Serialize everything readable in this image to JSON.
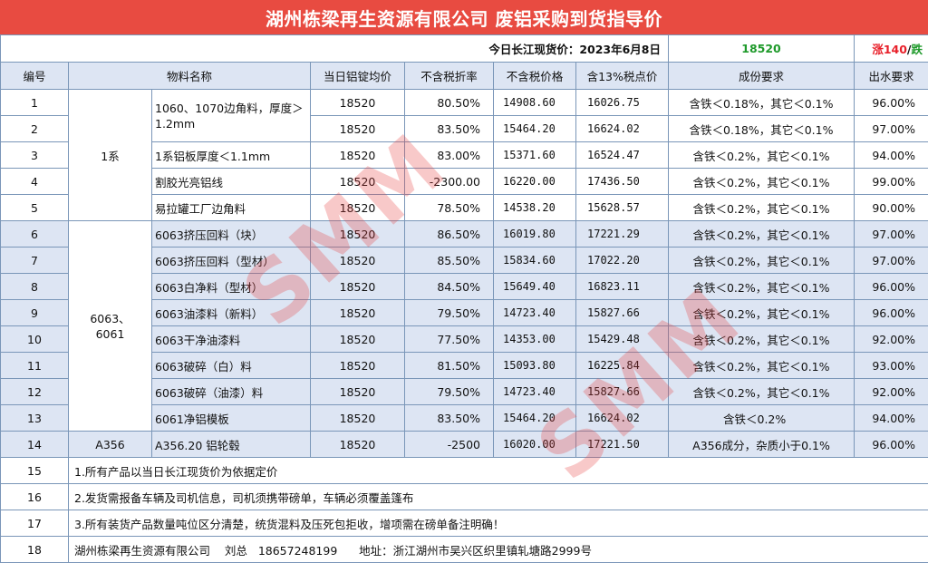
{
  "title": "湖州栋梁再生资源有限公司 废铝采购到货指导价",
  "price_bar": {
    "label": "今日长江现货价：2023年6月8日",
    "price": "18520",
    "change_up": "涨140",
    "change_sep": "/",
    "change_down": "跌"
  },
  "columns": [
    "编号",
    "物料名称",
    "",
    "当日铝锭均价",
    "不含税折率",
    "不含税价格",
    "含13%税点价",
    "成份要求",
    "出水要求"
  ],
  "groups": {
    "g1": "1系",
    "g6063": "6063、6061",
    "a356": "A356"
  },
  "rows": [
    {
      "no": "1",
      "name": "1060、1070边角料，厚度＞1.2mm",
      "avg": "18520",
      "rate": "80.50%",
      "pretax": "14908.60",
      "taxed": "16026.75",
      "comp": "含铁＜0.18%，其它＜0.1%",
      "water": "96.00%"
    },
    {
      "no": "2",
      "name": "",
      "avg": "18520",
      "rate": "83.50%",
      "pretax": "15464.20",
      "taxed": "16624.02",
      "comp": "含铁＜0.18%，其它＜0.1%",
      "water": "97.00%"
    },
    {
      "no": "3",
      "name": "1系铝板厚度＜1.1mm",
      "avg": "18520",
      "rate": "83.00%",
      "pretax": "15371.60",
      "taxed": "16524.47",
      "comp": "含铁＜0.2%，其它＜0.1%",
      "water": "94.00%"
    },
    {
      "no": "4",
      "name": "割胶光亮铝线",
      "avg": "18520",
      "rate": "-2300.00",
      "pretax": "16220.00",
      "taxed": "17436.50",
      "comp": "含铁＜0.2%，其它＜0.1%",
      "water": "99.00%"
    },
    {
      "no": "5",
      "name": "易拉罐工厂边角料",
      "avg": "18520",
      "rate": "78.50%",
      "pretax": "14538.20",
      "taxed": "15628.57",
      "comp": "含铁＜0.2%，其它＜0.1%",
      "water": "90.00%"
    },
    {
      "no": "6",
      "name": "6063挤压回料（块）",
      "avg": "18520",
      "rate": "86.50%",
      "pretax": "16019.80",
      "taxed": "17221.29",
      "comp": "含铁＜0.2%，其它＜0.1%",
      "water": "97.00%"
    },
    {
      "no": "7",
      "name": "6063挤压回料（型材）",
      "avg": "18520",
      "rate": "85.50%",
      "pretax": "15834.60",
      "taxed": "17022.20",
      "comp": "含铁＜0.2%，其它＜0.1%",
      "water": "97.00%"
    },
    {
      "no": "8",
      "name": "6063白净料（型材）",
      "avg": "18520",
      "rate": "84.50%",
      "pretax": "15649.40",
      "taxed": "16823.11",
      "comp": "含铁＜0.2%，其它＜0.1%",
      "water": "96.00%"
    },
    {
      "no": "9",
      "name": "6063油漆料（新料）",
      "avg": "18520",
      "rate": "79.50%",
      "pretax": "14723.40",
      "taxed": "15827.66",
      "comp": "含铁＜0.2%，其它＜0.1%",
      "water": "96.00%"
    },
    {
      "no": "10",
      "name": "6063干净油漆料",
      "avg": "18520",
      "rate": "77.50%",
      "pretax": "14353.00",
      "taxed": "15429.48",
      "comp": "含铁＜0.2%，其它＜0.1%",
      "water": "92.00%"
    },
    {
      "no": "11",
      "name": "6063破碎（白）料",
      "avg": "18520",
      "rate": "81.50%",
      "pretax": "15093.80",
      "taxed": "16225.84",
      "comp": "含铁＜0.2%，其它＜0.1%",
      "water": "93.00%"
    },
    {
      "no": "12",
      "name": "6063破碎（油漆）料",
      "avg": "18520",
      "rate": "79.50%",
      "pretax": "14723.40",
      "taxed": "15827.66",
      "comp": "含铁＜0.2%，其它＜0.1%",
      "water": "92.00%"
    },
    {
      "no": "13",
      "name": "6061净铝模板",
      "avg": "18520",
      "rate": "83.50%",
      "pretax": "15464.20",
      "taxed": "16624.02",
      "comp": "含铁＜0.2%",
      "water": "94.00%"
    },
    {
      "no": "14",
      "name": "A356.20 铝轮毂",
      "avg": "18520",
      "rate": "-2500",
      "pretax": "16020.00",
      "taxed": "17221.50",
      "comp": "A356成分，杂质小于0.1%",
      "water": "96.00%"
    }
  ],
  "notes": [
    {
      "no": "15",
      "text": "1.所有产品以当日长江现货价为依据定价"
    },
    {
      "no": "16",
      "text": "2.发货需报备车辆及司机信息，司机须携带磅单，车辆必须覆盖篷布"
    },
    {
      "no": "17",
      "text": "3.所有装货产品数量吨位区分清楚，统货混料及压死包拒收，增项需在磅单备注明确！"
    },
    {
      "no": "18",
      "text": "湖州栋梁再生资源有限公司    刘总   18657248199      地址：浙江湖州市吴兴区织里镇轧塘路2999号"
    }
  ],
  "watermark": "SMM",
  "colors": {
    "title_bg": "#e84b41",
    "header_bg": "#dde5f3",
    "price_green": "#1f9a2b",
    "up_red": "#e8202a",
    "watermark": "#e63c3c"
  }
}
